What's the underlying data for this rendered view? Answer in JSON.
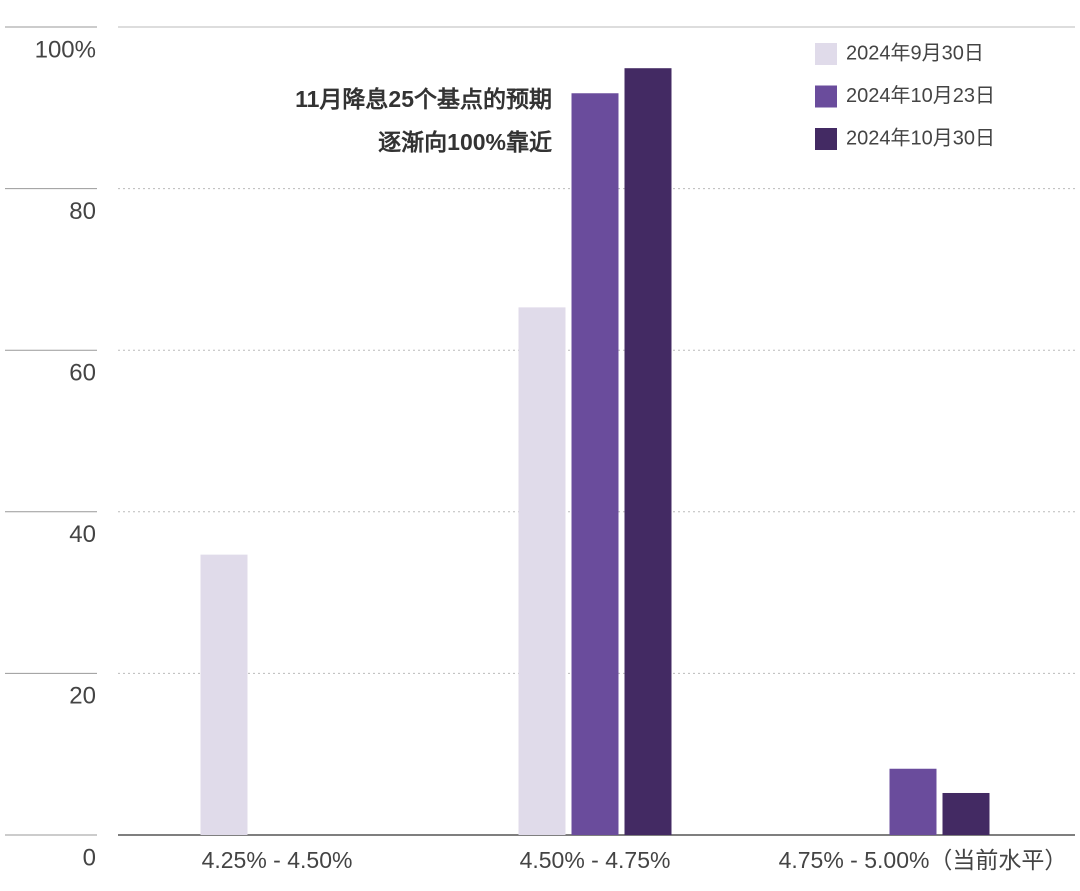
{
  "chart_data": {
    "type": "bar",
    "annotation": [
      "11月降息25个基点的预期",
      "逐渐向100%靠近"
    ],
    "categories": [
      "4.25% - 4.50%",
      "4.50% - 4.75%",
      "4.75% - 5.00%（当前水平）"
    ],
    "series": [
      {
        "name": "2024年9月30日",
        "color": "#e0dbea",
        "values": [
          34.7,
          65.3,
          0
        ]
      },
      {
        "name": "2024年10月23日",
        "color": "#6a4c9c",
        "values": [
          0,
          91.8,
          8.2
        ]
      },
      {
        "name": "2024年10月30日",
        "color": "#432a63",
        "values": [
          0,
          94.9,
          5.2
        ]
      }
    ],
    "ylim": [
      0,
      100
    ],
    "yticks": [
      0,
      20,
      40,
      60,
      80,
      {
        "value": 100,
        "label": "100%"
      }
    ],
    "grid": true
  }
}
